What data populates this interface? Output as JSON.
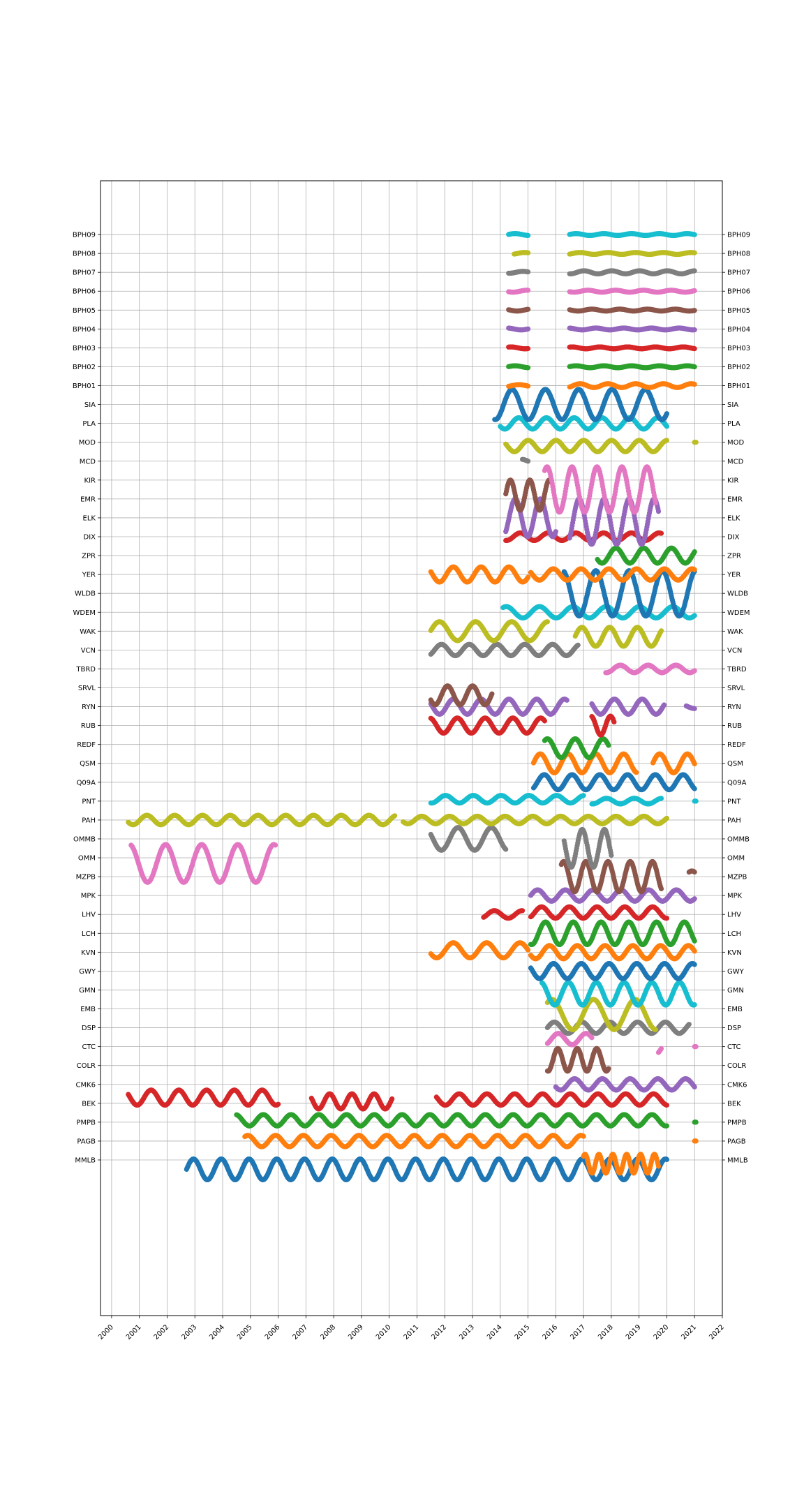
{
  "chart_data": {
    "type": "scatter",
    "title": "",
    "xlabel": "",
    "ylabel": "",
    "grid": true,
    "xlim": [
      1999.6,
      2022.0
    ],
    "x_ticks": [
      "2000",
      "2001",
      "2002",
      "2003",
      "2004",
      "2005",
      "2006",
      "2007",
      "2008",
      "2009",
      "2010",
      "2011",
      "2012",
      "2013",
      "2014",
      "2015",
      "2016",
      "2017",
      "2018",
      "2019",
      "2020",
      "2021",
      "2022"
    ],
    "y_ticks": [
      "MMLB",
      "PAGB",
      "PMPB",
      "BEK",
      "CMK6",
      "COLR",
      "CTC",
      "DSP",
      "EMB",
      "GMN",
      "GWY",
      "KVN",
      "LCH",
      "LHV",
      "MPK",
      "MZPB",
      "OMM",
      "OMMB",
      "PAH",
      "PNT",
      "Q09A",
      "QSM",
      "REDF",
      "RUB",
      "RYN",
      "SRVL",
      "TBRD",
      "VCN",
      "WAK",
      "WDEM",
      "WLDB",
      "YER",
      "ZPR",
      "DIX",
      "ELK",
      "EMR",
      "KIR",
      "MCD",
      "MOD",
      "PLA",
      "SIA",
      "BPH01",
      "BPH02",
      "BPH03",
      "BPH04",
      "BPH05",
      "BPH06",
      "BPH07",
      "BPH08",
      "BPH09"
    ],
    "colors": [
      "#1f77b4",
      "#ff7f0e",
      "#2ca02c",
      "#d62728",
      "#9467bd",
      "#8c564b",
      "#e377c2",
      "#7f7f7f",
      "#bcbd22",
      "#17becf"
    ],
    "series": [
      {
        "name": "MMLB",
        "color": "#1f77b4",
        "segments": [
          {
            "start": 2002.7,
            "end": 2020.0,
            "amp": 0.55,
            "off": -0.5,
            "period": 1.0
          }
        ]
      },
      {
        "name": "PAGB",
        "color": "#ff7f0e",
        "segments": [
          {
            "start": 2004.8,
            "end": 2017.0,
            "amp": 0.3,
            "off": 0,
            "period": 1.0
          },
          {
            "start": 2017.0,
            "end": 2019.7,
            "amp": 0.5,
            "off": -1.2,
            "period": 0.5
          },
          {
            "start": 2021.0,
            "end": 2021.05,
            "amp": 0,
            "off": 0,
            "period": 1
          }
        ]
      },
      {
        "name": "PMPB",
        "color": "#2ca02c",
        "segments": [
          {
            "start": 2004.5,
            "end": 2020.0,
            "amp": 0.3,
            "off": 0.1,
            "period": 1.0
          },
          {
            "start": 2021.0,
            "end": 2021.05,
            "amp": 0,
            "off": 0,
            "period": 1
          }
        ]
      },
      {
        "name": "BEK",
        "color": "#d62728",
        "segments": [
          {
            "start": 2000.6,
            "end": 2006.0,
            "amp": 0.4,
            "off": 0.3,
            "period": 1.0
          },
          {
            "start": 2007.2,
            "end": 2010.1,
            "amp": 0.4,
            "off": 0.1,
            "period": 0.8
          },
          {
            "start": 2011.7,
            "end": 2020.0,
            "amp": 0.3,
            "off": 0.2,
            "period": 1.0
          }
        ]
      },
      {
        "name": "CMK6",
        "color": "#9467bd",
        "segments": [
          {
            "start": 2016.0,
            "end": 2021.0,
            "amp": 0.3,
            "off": 0,
            "period": 1.0
          }
        ]
      },
      {
        "name": "COLR",
        "color": "#8c564b",
        "segments": [
          {
            "start": 2015.7,
            "end": 2017.9,
            "amp": 0.6,
            "off": 0.3,
            "period": 0.7
          }
        ]
      },
      {
        "name": "CTC",
        "color": "#e377c2",
        "segments": [
          {
            "start": 2015.7,
            "end": 2017.3,
            "amp": 0.3,
            "off": 0.4,
            "period": 1.0
          },
          {
            "start": 2019.7,
            "end": 2019.8,
            "amp": 0.4,
            "off": 0,
            "period": 1
          },
          {
            "start": 2021.0,
            "end": 2021.05,
            "amp": 0,
            "off": 0,
            "period": 1
          }
        ]
      },
      {
        "name": "DSP",
        "color": "#7f7f7f",
        "segments": [
          {
            "start": 2015.7,
            "end": 2020.8,
            "amp": 0.3,
            "off": 0,
            "period": 1.0
          }
        ]
      },
      {
        "name": "EMB",
        "color": "#bcbd22",
        "segments": [
          {
            "start": 2015.7,
            "end": 2019.6,
            "amp": 0.8,
            "off": -0.3,
            "period": 1.5
          }
        ]
      },
      {
        "name": "GMN",
        "color": "#17becf",
        "segments": [
          {
            "start": 2015.5,
            "end": 2021.0,
            "amp": 0.6,
            "off": -0.2,
            "period": 1.0
          }
        ]
      },
      {
        "name": "GWY",
        "color": "#1f77b4",
        "segments": [
          {
            "start": 2015.1,
            "end": 2021.0,
            "amp": 0.4,
            "off": 0,
            "period": 1.0
          }
        ]
      },
      {
        "name": "KVN",
        "color": "#ff7f0e",
        "segments": [
          {
            "start": 2011.5,
            "end": 2015.0,
            "amp": 0.4,
            "off": 0.1,
            "period": 1.2
          },
          {
            "start": 2015.1,
            "end": 2021.0,
            "amp": 0.35,
            "off": 0,
            "period": 1.0
          }
        ]
      },
      {
        "name": "LCH",
        "color": "#2ca02c",
        "segments": [
          {
            "start": 2015.1,
            "end": 2021.0,
            "amp": 0.6,
            "off": 0,
            "period": 1.0
          }
        ]
      },
      {
        "name": "LHV",
        "color": "#d62728",
        "segments": [
          {
            "start": 2013.4,
            "end": 2014.8,
            "amp": 0.2,
            "off": 0,
            "period": 1.0
          },
          {
            "start": 2015.1,
            "end": 2020.0,
            "amp": 0.3,
            "off": 0.1,
            "period": 1.0
          }
        ]
      },
      {
        "name": "MPK",
        "color": "#9467bd",
        "segments": [
          {
            "start": 2015.1,
            "end": 2021.0,
            "amp": 0.3,
            "off": 0,
            "period": 1.0
          }
        ]
      },
      {
        "name": "MZPB",
        "color": "#8c564b",
        "segments": [
          {
            "start": 2016.2,
            "end": 2019.8,
            "amp": 0.8,
            "off": 0,
            "period": 0.8
          },
          {
            "start": 2020.8,
            "end": 2021.0,
            "amp": 0.3,
            "off": 0,
            "period": 1
          }
        ]
      },
      {
        "name": "OMM",
        "color": "#e377c2",
        "segments": [
          {
            "start": 2000.7,
            "end": 2005.9,
            "amp": 1.0,
            "off": -0.3,
            "period": 1.3
          }
        ]
      },
      {
        "name": "OMMB",
        "color": "#7f7f7f",
        "segments": [
          {
            "start": 2011.5,
            "end": 2014.2,
            "amp": 0.6,
            "off": 0,
            "period": 1.2
          },
          {
            "start": 2016.3,
            "end": 2018.0,
            "amp": 1.0,
            "off": -0.5,
            "period": 0.8
          }
        ]
      },
      {
        "name": "PAH",
        "color": "#bcbd22",
        "segments": [
          {
            "start": 2000.6,
            "end": 2010.2,
            "amp": 0.25,
            "off": 0,
            "period": 1.0
          },
          {
            "start": 2010.5,
            "end": 2020.0,
            "amp": 0.2,
            "off": 0,
            "period": 1.0
          }
        ]
      },
      {
        "name": "PNT",
        "color": "#17becf",
        "segments": [
          {
            "start": 2011.5,
            "end": 2017.0,
            "amp": 0.2,
            "off": 0.1,
            "period": 1.0
          },
          {
            "start": 2017.3,
            "end": 2019.8,
            "amp": 0.15,
            "off": 0,
            "period": 1.0
          },
          {
            "start": 2021.0,
            "end": 2021.05,
            "amp": 0,
            "off": 0,
            "period": 1
          }
        ]
      },
      {
        "name": "Q09A",
        "color": "#1f77b4",
        "segments": [
          {
            "start": 2015.2,
            "end": 2021.0,
            "amp": 0.4,
            "off": 0,
            "period": 1.0
          }
        ]
      },
      {
        "name": "QSM",
        "color": "#ff7f0e",
        "segments": [
          {
            "start": 2015.2,
            "end": 2018.9,
            "amp": 0.5,
            "off": 0,
            "period": 1.0
          },
          {
            "start": 2019.5,
            "end": 2021.0,
            "amp": 0.5,
            "off": 0,
            "period": 1.0
          }
        ]
      },
      {
        "name": "REDF",
        "color": "#2ca02c",
        "segments": [
          {
            "start": 2015.6,
            "end": 2017.9,
            "amp": 0.5,
            "off": -0.2,
            "period": 1.0
          }
        ]
      },
      {
        "name": "RUB",
        "color": "#d62728",
        "segments": [
          {
            "start": 2011.5,
            "end": 2015.6,
            "amp": 0.4,
            "off": 0,
            "period": 1.0
          },
          {
            "start": 2017.3,
            "end": 2018.1,
            "amp": 0.5,
            "off": 0,
            "period": 0.7
          }
        ]
      },
      {
        "name": "RYN",
        "color": "#9467bd",
        "segments": [
          {
            "start": 2011.5,
            "end": 2016.4,
            "amp": 0.4,
            "off": 0,
            "period": 1.0
          },
          {
            "start": 2017.3,
            "end": 2019.9,
            "amp": 0.4,
            "off": 0,
            "period": 1.0
          },
          {
            "start": 2020.7,
            "end": 2021.0,
            "amp": 0.1,
            "off": 0,
            "period": 1
          }
        ]
      },
      {
        "name": "SRVL",
        "color": "#8c564b",
        "segments": [
          {
            "start": 2011.5,
            "end": 2013.7,
            "amp": 0.5,
            "off": -0.4,
            "period": 0.9
          }
        ]
      },
      {
        "name": "TBRD",
        "color": "#e377c2",
        "segments": [
          {
            "start": 2017.8,
            "end": 2021.0,
            "amp": 0.2,
            "off": 0,
            "period": 1.0
          }
        ]
      },
      {
        "name": "VCN",
        "color": "#7f7f7f",
        "segments": [
          {
            "start": 2011.5,
            "end": 2016.8,
            "amp": 0.3,
            "off": 0,
            "period": 1.0
          }
        ]
      },
      {
        "name": "WAK",
        "color": "#bcbd22",
        "segments": [
          {
            "start": 2011.5,
            "end": 2015.7,
            "amp": 0.5,
            "off": 0,
            "period": 1.3
          },
          {
            "start": 2016.7,
            "end": 2019.8,
            "amp": 0.5,
            "off": -0.3,
            "period": 1.0
          }
        ]
      },
      {
        "name": "WDEM",
        "color": "#17becf",
        "segments": [
          {
            "start": 2014.1,
            "end": 2021.0,
            "amp": 0.3,
            "off": 0,
            "period": 1.2
          }
        ]
      },
      {
        "name": "WLDB",
        "color": "#1f77b4",
        "segments": [
          {
            "start": 2016.3,
            "end": 2021.0,
            "amp": 1.2,
            "off": 0,
            "period": 1.2
          }
        ]
      },
      {
        "name": "YER",
        "color": "#ff7f0e",
        "segments": [
          {
            "start": 2011.5,
            "end": 2015.0,
            "amp": 0.4,
            "off": 0,
            "period": 1.0
          },
          {
            "start": 2015.1,
            "end": 2021.0,
            "amp": 0.3,
            "off": 0,
            "period": 1.0
          }
        ]
      },
      {
        "name": "ZPR",
        "color": "#2ca02c",
        "segments": [
          {
            "start": 2017.5,
            "end": 2021.0,
            "amp": 0.4,
            "off": 0,
            "period": 1.0
          }
        ]
      },
      {
        "name": "DIX",
        "color": "#d62728",
        "segments": [
          {
            "start": 2014.2,
            "end": 2019.8,
            "amp": 0.2,
            "off": 0,
            "period": 1.0
          }
        ]
      },
      {
        "name": "ELK",
        "color": "#9467bd",
        "segments": [
          {
            "start": 2014.2,
            "end": 2016.0,
            "amp": 1.0,
            "off": 0,
            "period": 0.9
          },
          {
            "start": 2016.5,
            "end": 2019.7,
            "amp": 1.2,
            "off": -0.2,
            "period": 0.9
          }
        ]
      },
      {
        "name": "EMR",
        "color": "#8c564b",
        "segments": [
          {
            "start": 2014.2,
            "end": 2015.8,
            "amp": 0.8,
            "off": 0.2,
            "period": 0.7
          }
        ]
      },
      {
        "name": "KIR",
        "color": "#e377c2",
        "segments": [
          {
            "start": 2015.6,
            "end": 2019.6,
            "amp": 1.2,
            "off": -0.5,
            "period": 0.9
          }
        ]
      },
      {
        "name": "MCD",
        "color": "#7f7f7f",
        "segments": [
          {
            "start": 2014.8,
            "end": 2015.0,
            "amp": 0.1,
            "off": 0,
            "period": 1
          }
        ]
      },
      {
        "name": "MOD",
        "color": "#bcbd22",
        "segments": [
          {
            "start": 2014.2,
            "end": 2020.0,
            "amp": 0.3,
            "off": -0.2,
            "period": 1.0
          },
          {
            "start": 2021.0,
            "end": 2021.05,
            "amp": 0,
            "off": 0,
            "period": 1
          }
        ]
      },
      {
        "name": "PLA",
        "color": "#17becf",
        "segments": [
          {
            "start": 2014.0,
            "end": 2020.0,
            "amp": 0.3,
            "off": 0,
            "period": 1.0
          }
        ]
      },
      {
        "name": "SIA",
        "color": "#1f77b4",
        "segments": [
          {
            "start": 2013.8,
            "end": 2020.0,
            "amp": 0.8,
            "off": 0,
            "period": 1.2
          }
        ]
      },
      {
        "name": "BPH01",
        "color": "#ff7f0e",
        "segments": [
          {
            "start": 2014.3,
            "end": 2015.0,
            "amp": 0.05,
            "off": 0,
            "period": 1.0
          },
          {
            "start": 2016.5,
            "end": 2021.0,
            "amp": 0.1,
            "off": 0,
            "period": 1.0
          }
        ]
      },
      {
        "name": "BPH02",
        "color": "#2ca02c",
        "segments": [
          {
            "start": 2014.3,
            "end": 2015.0,
            "amp": 0.05,
            "off": 0,
            "period": 1.0
          },
          {
            "start": 2016.5,
            "end": 2021.0,
            "amp": 0.05,
            "off": 0,
            "period": 1.0
          }
        ]
      },
      {
        "name": "BPH03",
        "color": "#d62728",
        "segments": [
          {
            "start": 2014.3,
            "end": 2015.0,
            "amp": 0.05,
            "off": 0,
            "period": 1.0
          },
          {
            "start": 2016.5,
            "end": 2021.0,
            "amp": 0.05,
            "off": 0,
            "period": 1.0
          }
        ]
      },
      {
        "name": "BPH04",
        "color": "#9467bd",
        "segments": [
          {
            "start": 2014.3,
            "end": 2015.0,
            "amp": 0.05,
            "off": 0,
            "period": 1.0
          },
          {
            "start": 2016.5,
            "end": 2021.0,
            "amp": 0.05,
            "off": 0,
            "period": 1.0
          }
        ]
      },
      {
        "name": "BPH05",
        "color": "#8c564b",
        "segments": [
          {
            "start": 2014.3,
            "end": 2015.0,
            "amp": 0.05,
            "off": 0,
            "period": 1.0
          },
          {
            "start": 2016.5,
            "end": 2021.0,
            "amp": 0.05,
            "off": 0,
            "period": 1.0
          }
        ]
      },
      {
        "name": "BPH06",
        "color": "#e377c2",
        "segments": [
          {
            "start": 2014.3,
            "end": 2015.0,
            "amp": 0.05,
            "off": 0,
            "period": 1.0
          },
          {
            "start": 2016.5,
            "end": 2021.0,
            "amp": 0.05,
            "off": 0,
            "period": 1.0
          }
        ]
      },
      {
        "name": "BPH07",
        "color": "#7f7f7f",
        "segments": [
          {
            "start": 2014.3,
            "end": 2015.0,
            "amp": 0.05,
            "off": 0,
            "period": 1.0
          },
          {
            "start": 2016.5,
            "end": 2021.0,
            "amp": 0.08,
            "off": 0,
            "period": 1.0
          }
        ]
      },
      {
        "name": "BPH08",
        "color": "#bcbd22",
        "segments": [
          {
            "start": 2014.5,
            "end": 2015.0,
            "amp": 0.05,
            "off": 0,
            "period": 1.0
          },
          {
            "start": 2016.5,
            "end": 2021.0,
            "amp": 0.05,
            "off": 0,
            "period": 1.0
          }
        ]
      },
      {
        "name": "BPH09",
        "color": "#17becf",
        "segments": [
          {
            "start": 2014.3,
            "end": 2015.0,
            "amp": 0.05,
            "off": 0,
            "period": 1.0
          },
          {
            "start": 2016.5,
            "end": 2021.0,
            "amp": 0.05,
            "off": 0,
            "period": 1.0
          }
        ]
      }
    ]
  }
}
